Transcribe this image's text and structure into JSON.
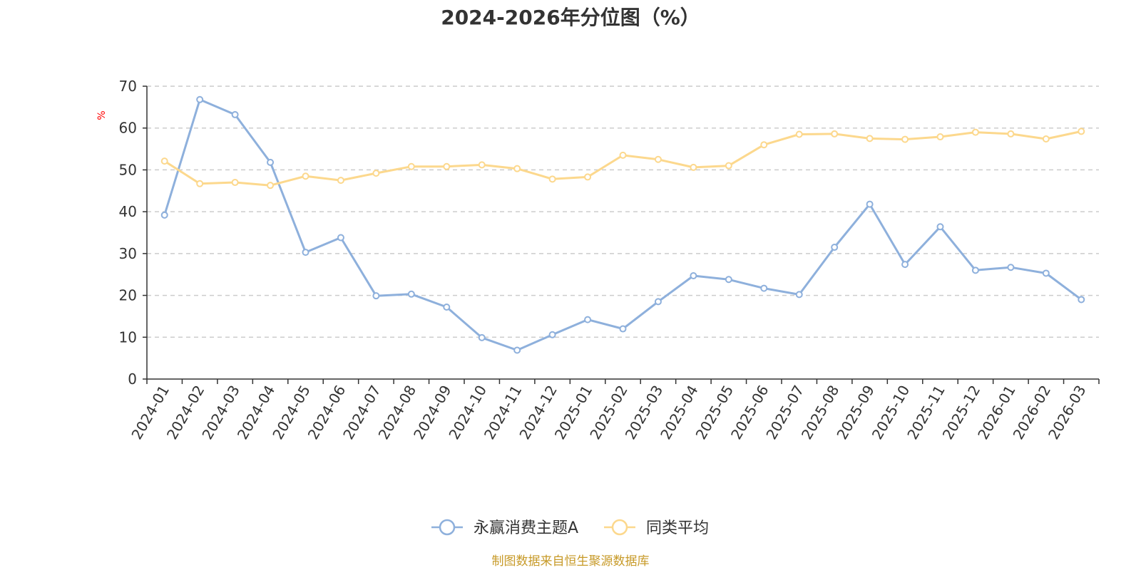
{
  "chart_data": {
    "type": "line",
    "title": "2024-2026年分位图（%）",
    "ylabel": "%",
    "xlabel": "",
    "ylim": [
      0,
      70
    ],
    "y_ticks": [
      0,
      10,
      20,
      30,
      40,
      50,
      60,
      70
    ],
    "grid": "horizontal dashed",
    "legend_position": "bottom-center",
    "x": [
      "2024-01",
      "2024-02",
      "2024-03",
      "2024-04",
      "2024-05",
      "2024-06",
      "2024-07",
      "2024-08",
      "2024-09",
      "2024-10",
      "2024-11",
      "2024-12",
      "2025-01",
      "2025-02",
      "2025-03",
      "2025-04",
      "2025-05",
      "2025-06",
      "2025-07",
      "2025-08",
      "2025-09",
      "2025-10",
      "2025-11",
      "2025-12",
      "2026-01",
      "2026-02",
      "2026-03"
    ],
    "series": [
      {
        "name": "永赢消费主题A",
        "color": "#8eb0dc",
        "values": [
          39.2,
          66.8,
          63.2,
          51.8,
          30.3,
          33.8,
          19.9,
          20.3,
          17.2,
          9.9,
          6.9,
          10.6,
          14.2,
          12.0,
          18.5,
          24.7,
          23.8,
          21.7,
          20.2,
          31.5,
          41.8,
          27.4,
          36.4,
          26.0,
          26.7,
          25.3,
          19.0
        ]
      },
      {
        "name": "同类平均",
        "color": "#fcd88d",
        "values": [
          52.1,
          46.7,
          47.0,
          46.3,
          48.5,
          47.5,
          49.2,
          50.8,
          50.8,
          51.2,
          50.3,
          47.8,
          48.3,
          53.5,
          52.5,
          50.6,
          51.0,
          56.0,
          58.5,
          58.6,
          57.5,
          57.3,
          57.9,
          59.0,
          58.6,
          57.4,
          59.2
        ]
      }
    ]
  },
  "source_note": "制图数据来自恒生聚源数据库"
}
